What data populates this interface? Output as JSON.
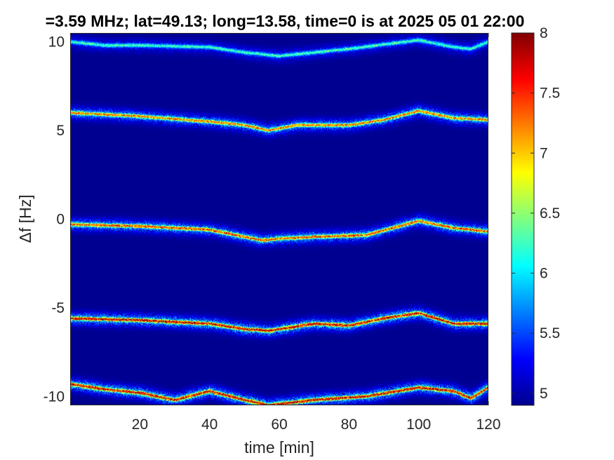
{
  "chart_data": {
    "type": "heatmap",
    "title": "=3.59 MHz;  lat=49.13; long=13.58, time=0 is at 2025 05 01 22:00",
    "xlabel": "time [min]",
    "ylabel": "Δf [Hz]",
    "xlim": [
      0,
      120
    ],
    "ylim": [
      -10.5,
      10.5
    ],
    "x_ticks": [
      20,
      40,
      60,
      80,
      100,
      120
    ],
    "x_tick_labels": [
      "20",
      "40",
      "60",
      "80",
      "100",
      "120"
    ],
    "y_ticks": [
      -10,
      -5,
      0,
      5,
      10
    ],
    "y_tick_labels": [
      "-10",
      "-5",
      "0",
      "5",
      "10"
    ],
    "colorbar": {
      "range": [
        4.9,
        8.0
      ],
      "ticks": [
        5,
        5.5,
        6,
        6.5,
        7,
        7.5,
        8
      ],
      "tick_labels": [
        "5",
        "5.5",
        "6",
        "6.5",
        "7",
        "7.5",
        "8"
      ],
      "colormap": "jet"
    },
    "background_level": 4.95,
    "traces": [
      {
        "base": 10,
        "peak": 6.3,
        "t": [
          0,
          10,
          20,
          40,
          50,
          60,
          70,
          80,
          100,
          110,
          115,
          120
        ],
        "df": [
          0,
          -0.2,
          -0.2,
          -0.3,
          -0.6,
          -0.8,
          -0.6,
          -0.4,
          0.1,
          -0.3,
          -0.4,
          0
        ]
      },
      {
        "base": 5,
        "peak": 7.3,
        "t": [
          0,
          20,
          40,
          50,
          57,
          65,
          80,
          90,
          100,
          110,
          120
        ],
        "df": [
          1.0,
          0.8,
          0.5,
          0.3,
          0.0,
          0.3,
          0.3,
          0.6,
          1.1,
          0.7,
          0.6
        ]
      },
      {
        "base": 0,
        "peak": 7.5,
        "t": [
          0,
          20,
          40,
          50,
          55,
          60,
          70,
          85,
          100,
          110,
          120
        ],
        "df": [
          -0.3,
          -0.4,
          -0.6,
          -1.0,
          -1.2,
          -1.1,
          -1.0,
          -0.9,
          -0.1,
          -0.5,
          -0.7
        ]
      },
      {
        "base": -5,
        "peak": 7.9,
        "t": [
          0,
          20,
          40,
          50,
          57,
          70,
          80,
          90,
          100,
          110,
          120
        ],
        "df": [
          -0.6,
          -0.7,
          -0.9,
          -1.2,
          -1.3,
          -0.9,
          -1.0,
          -0.6,
          -0.3,
          -0.9,
          -0.9
        ]
      },
      {
        "base": -10,
        "peak": 7.9,
        "t": [
          0,
          10,
          20,
          30,
          40,
          50,
          57,
          70,
          85,
          100,
          110,
          115,
          120
        ],
        "df": [
          0.7,
          0.4,
          0.2,
          -0.2,
          0.3,
          -0.2,
          -0.5,
          -0.2,
          0.0,
          0.5,
          0.3,
          -0.1,
          0.5
        ]
      }
    ]
  }
}
